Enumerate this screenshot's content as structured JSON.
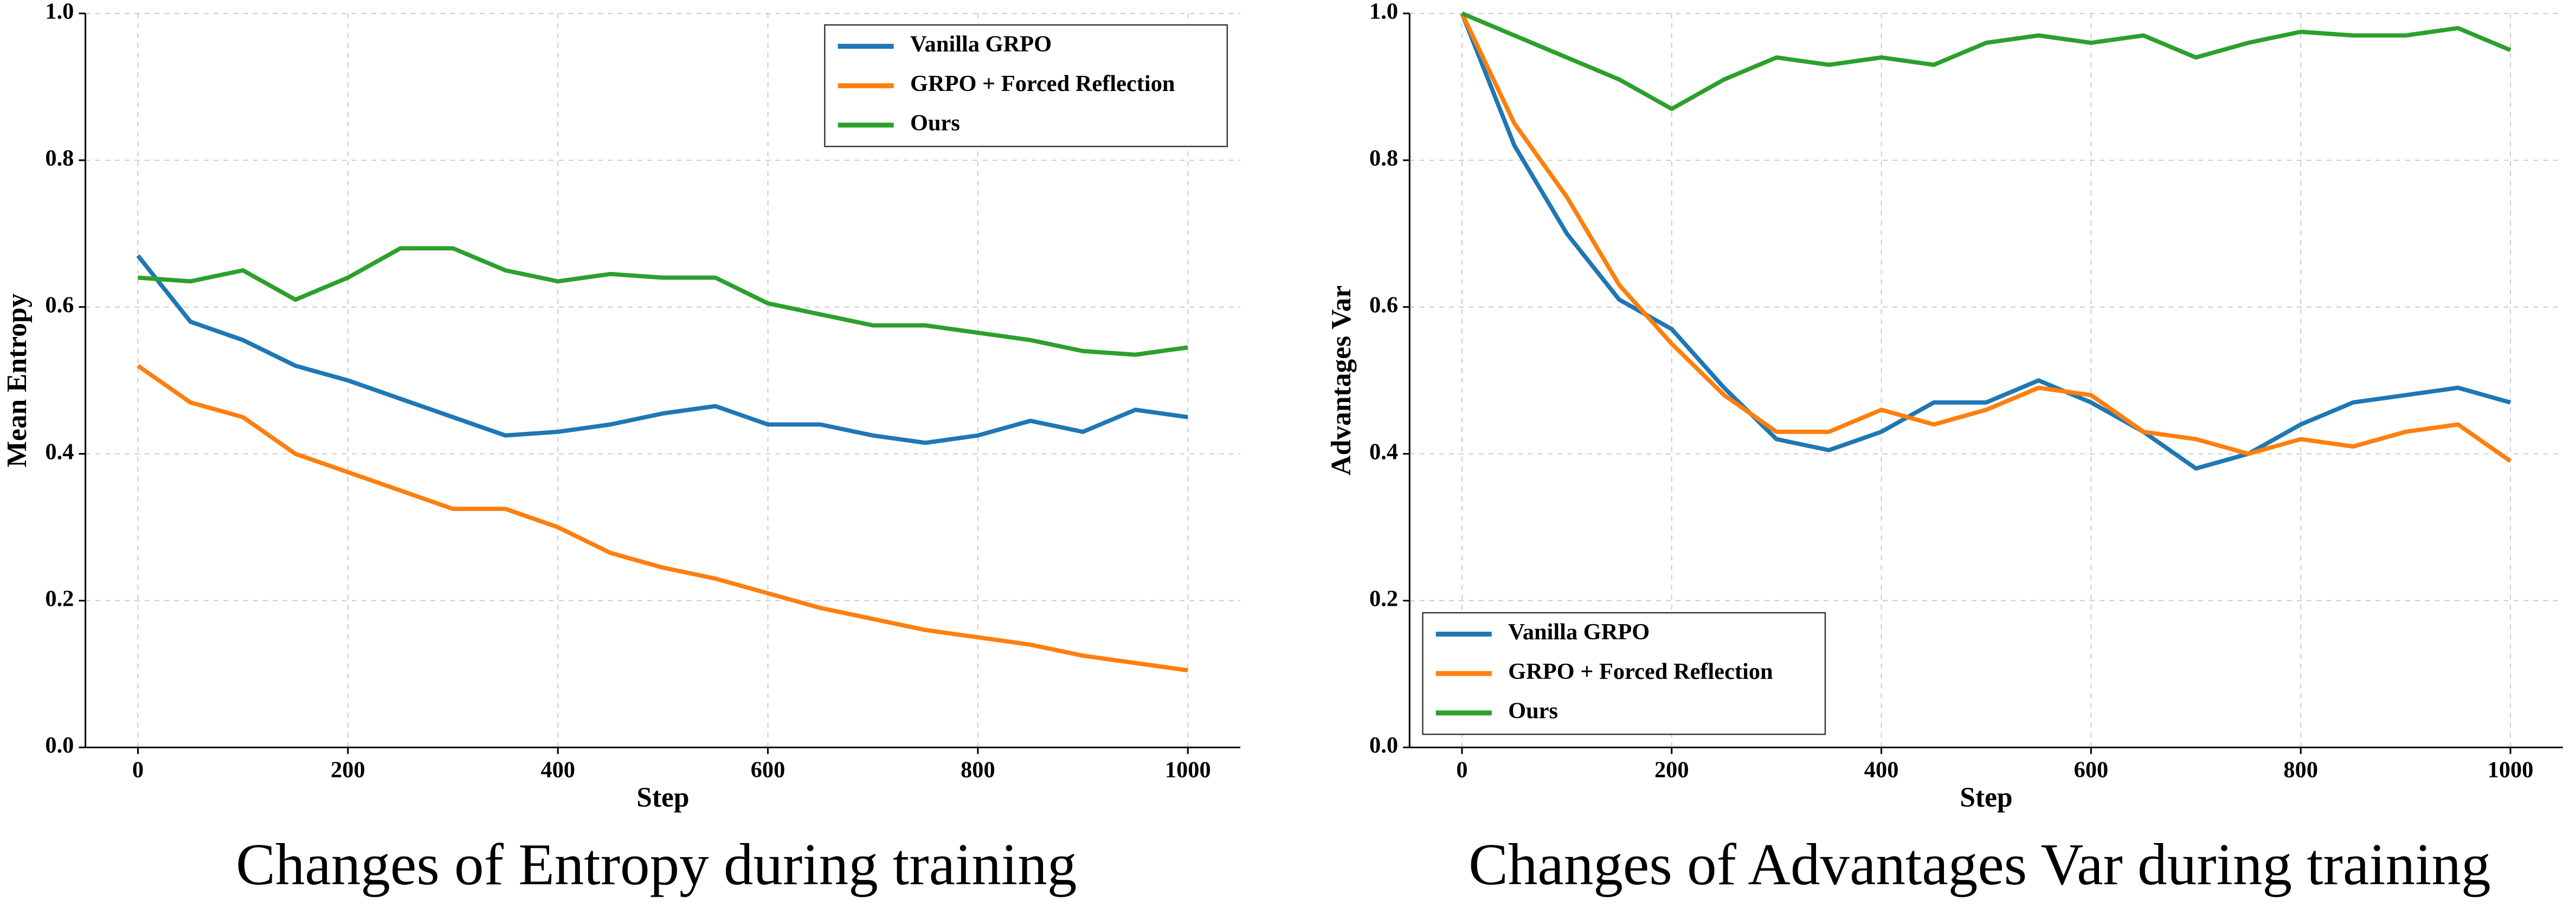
{
  "chart_data": [
    {
      "type": "line",
      "title": "Changes of Entropy during training",
      "xlabel": "Step",
      "ylabel": "Mean Entropy",
      "x": [
        0,
        50,
        100,
        150,
        200,
        250,
        300,
        350,
        400,
        450,
        500,
        550,
        600,
        650,
        700,
        750,
        800,
        850,
        900,
        950,
        1000
      ],
      "xlim": [
        -50,
        1050
      ],
      "ylim": [
        0,
        1
      ],
      "xticks": [
        0,
        200,
        400,
        600,
        800,
        1000
      ],
      "yticks": [
        {
          "value": 0,
          "label": "0.0"
        },
        0.2,
        0.4,
        0.6,
        0.8,
        {
          "value": 1,
          "label": "1.0"
        }
      ],
      "grid": true,
      "legend": "upper right",
      "series": [
        {
          "name": "Vanilla GRPO",
          "color": "#1f77b4",
          "values": [
            0.67,
            0.58,
            0.555,
            0.52,
            0.5,
            0.475,
            0.45,
            0.425,
            0.43,
            0.44,
            0.455,
            0.465,
            0.44,
            0.44,
            0.425,
            0.415,
            0.425,
            0.445,
            0.43,
            0.46,
            0.45
          ]
        },
        {
          "name": "GRPO + Forced Reflection",
          "color": "#ff7f0e",
          "values": [
            0.52,
            0.47,
            0.45,
            0.4,
            0.375,
            0.35,
            0.325,
            0.325,
            0.3,
            0.265,
            0.245,
            0.23,
            0.21,
            0.19,
            0.175,
            0.16,
            0.15,
            0.14,
            0.125,
            0.115,
            0.105
          ]
        },
        {
          "name": "Ours",
          "color": "#2ca02c",
          "values": [
            0.64,
            0.635,
            0.65,
            0.61,
            0.64,
            0.68,
            0.68,
            0.65,
            0.635,
            0.645,
            0.64,
            0.64,
            0.605,
            0.59,
            0.575,
            0.575,
            0.565,
            0.555,
            0.54,
            0.535,
            0.545
          ]
        }
      ]
    },
    {
      "type": "line",
      "title": "Changes of Advantages Var during training",
      "xlabel": "Step",
      "ylabel": "Advantages Var",
      "x": [
        0,
        50,
        100,
        150,
        200,
        250,
        300,
        350,
        400,
        450,
        500,
        550,
        600,
        650,
        700,
        750,
        800,
        850,
        900,
        950,
        1000
      ],
      "xlim": [
        -50,
        1050
      ],
      "ylim": [
        0,
        1
      ],
      "xticks": [
        0,
        200,
        400,
        600,
        800,
        1000
      ],
      "yticks": [
        {
          "value": 0,
          "label": "0.0"
        },
        0.2,
        0.4,
        0.6,
        0.8,
        {
          "value": 1,
          "label": "1.0"
        }
      ],
      "grid": true,
      "legend": "lower left",
      "series": [
        {
          "name": "Vanilla GRPO",
          "color": "#1f77b4",
          "values": [
            1.0,
            0.82,
            0.7,
            0.61,
            0.57,
            0.49,
            0.42,
            0.405,
            0.43,
            0.47,
            0.47,
            0.5,
            0.47,
            0.43,
            0.38,
            0.4,
            0.44,
            0.47,
            0.48,
            0.49,
            0.47
          ]
        },
        {
          "name": "GRPO + Forced Reflection",
          "color": "#ff7f0e",
          "values": [
            1.0,
            0.85,
            0.75,
            0.63,
            0.55,
            0.48,
            0.43,
            0.43,
            0.46,
            0.44,
            0.46,
            0.49,
            0.48,
            0.43,
            0.42,
            0.4,
            0.42,
            0.41,
            0.43,
            0.44,
            0.39
          ]
        },
        {
          "name": "Ours",
          "color": "#2ca02c",
          "values": [
            1.0,
            0.97,
            0.94,
            0.91,
            0.87,
            0.91,
            0.94,
            0.93,
            0.94,
            0.93,
            0.96,
            0.97,
            0.96,
            0.97,
            0.94,
            0.96,
            0.975,
            0.97,
            0.97,
            0.98,
            0.95
          ]
        }
      ]
    }
  ]
}
